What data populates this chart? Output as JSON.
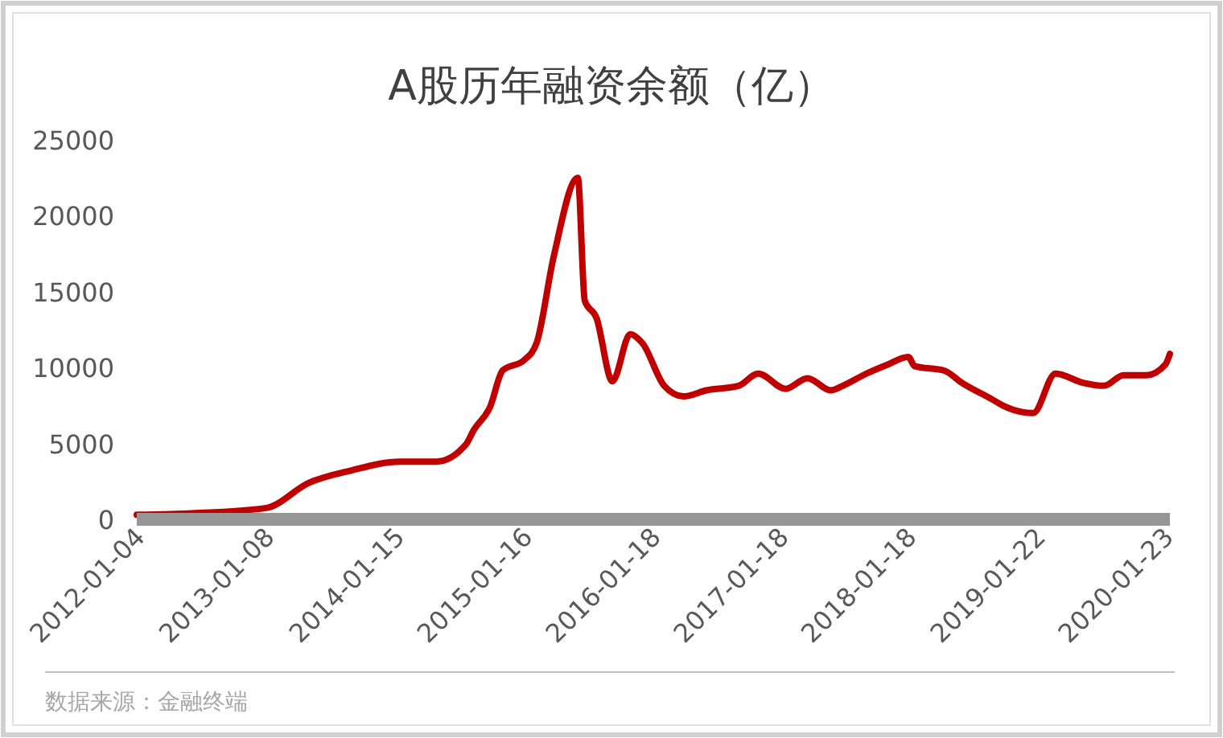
{
  "chart_data": {
    "type": "line",
    "title": "A股历年融资余额（亿）",
    "annotations": [
      "数据来源：金融终端"
    ],
    "x": [
      "2012-01-04",
      "2012-06-10",
      "2013-01-08",
      "2013-05-10",
      "2013-09-05",
      "2014-01-25",
      "2014-05-10",
      "2014-08-01",
      "2014-08-25",
      "2014-10-10",
      "2014-11-15",
      "2015-01-16",
      "2015-02-20",
      "2015-04-10",
      "2015-06-18",
      "2015-07-08",
      "2015-08-10",
      "2015-09-25",
      "2015-11-15",
      "2015-12-20",
      "2016-02-20",
      "2016-04-15",
      "2016-06-20",
      "2016-09-20",
      "2016-11-15",
      "2017-02-01",
      "2017-04-05",
      "2017-06-10",
      "2017-07-15",
      "2017-09-20",
      "2017-11-20",
      "2018-01-18",
      "2018-02-05",
      "2018-05-01",
      "2018-06-20",
      "2018-09-15",
      "2018-10-15",
      "2019-01-10",
      "2019-03-15",
      "2019-06-01",
      "2019-08-01",
      "2019-09-25",
      "2019-12-01",
      "2020-01-23",
      "2020-02-05"
    ],
    "series": [
      {
        "color": "#c00000",
        "values": [
          300,
          400,
          750,
          2400,
          3200,
          3800,
          3800,
          4900,
          5900,
          7400,
          9800,
          10500,
          11600,
          17300,
          22500,
          14400,
          13300,
          9100,
          12200,
          11600,
          8800,
          8100,
          8500,
          8800,
          9600,
          8600,
          9300,
          8500,
          8800,
          9600,
          10200,
          10700,
          10100,
          9800,
          9000,
          7900,
          7500,
          7000,
          9600,
          9000,
          8800,
          9500,
          9500,
          10200,
          10900
        ]
      }
    ],
    "xlim": [
      "2012-01-04",
      "2020-02-05"
    ],
    "xticks": [
      "2012-01-04",
      "2013-01-08",
      "2014-01-15",
      "2015-01-16",
      "2016-01-18",
      "2017-01-18",
      "2018-01-18",
      "2019-01-22",
      "2020-01-23"
    ],
    "ylim": [
      0,
      25000
    ],
    "yticks": [
      0,
      5000,
      10000,
      15000,
      20000,
      25000
    ],
    "grid": false,
    "marker": "none",
    "line_style": "solid"
  }
}
